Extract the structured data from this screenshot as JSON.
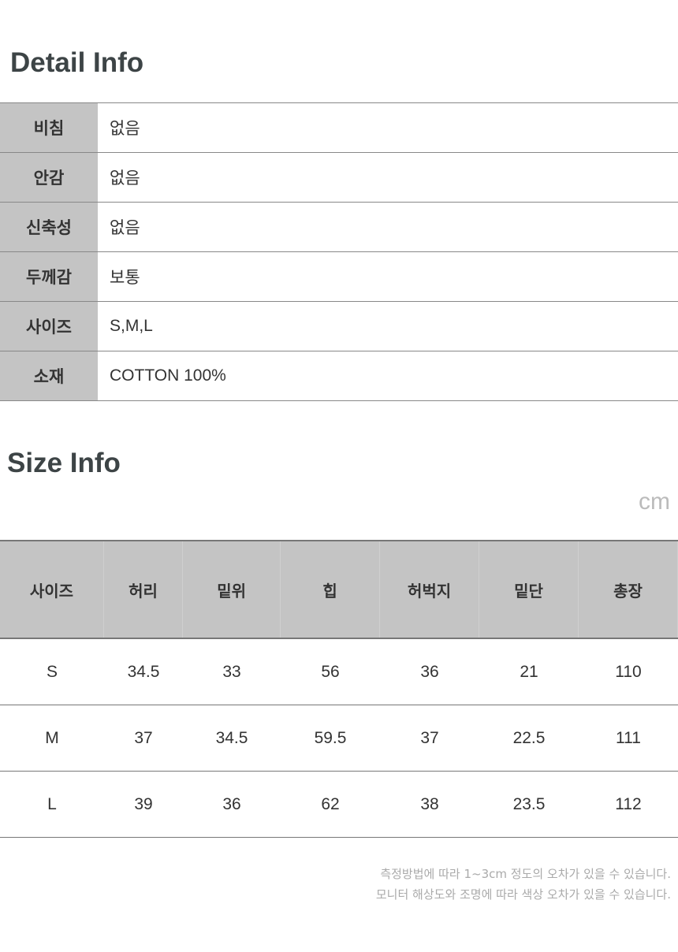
{
  "detail": {
    "title": "Detail Info",
    "rows": [
      {
        "label": "비침",
        "value": "없음"
      },
      {
        "label": "안감",
        "value": "없음"
      },
      {
        "label": "신축성",
        "value": "없음"
      },
      {
        "label": "두께감",
        "value": "보통"
      },
      {
        "label": "사이즈",
        "value": "S,M,L"
      },
      {
        "label": "소재",
        "value": "COTTON 100%"
      }
    ]
  },
  "size": {
    "title": "Size Info",
    "unit": "cm",
    "headers": [
      "사이즈",
      "허리",
      "밑위",
      "힙",
      "허벅지",
      "밑단",
      "총장"
    ],
    "rows": [
      [
        "S",
        "34.5",
        "33",
        "56",
        "36",
        "21",
        "110"
      ],
      [
        "M",
        "37",
        "34.5",
        "59.5",
        "37",
        "22.5",
        "111"
      ],
      [
        "L",
        "39",
        "36",
        "62",
        "38",
        "23.5",
        "112"
      ]
    ]
  },
  "notes": [
    "측정방법에 따라 1~3cm 정도의 오차가 있을 수 있습니다.",
    "모니터 해상도와 조명에 따라 색상 오차가 있을 수 있습니다."
  ]
}
